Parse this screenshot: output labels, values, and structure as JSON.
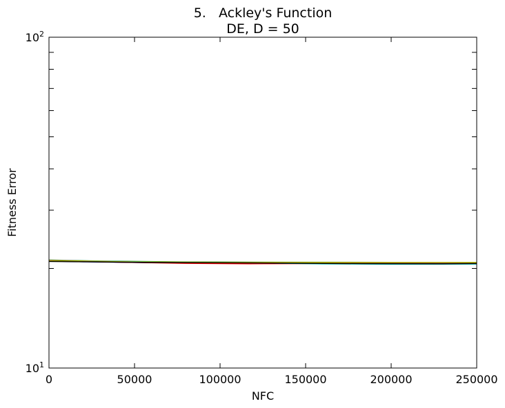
{
  "chart_data": {
    "type": "line",
    "title_line1": "5.   Ackley's Function",
    "title_line2": "DE, D = 50",
    "xlabel": "NFC",
    "ylabel": "Fitness Error",
    "xlim": [
      0,
      250000
    ],
    "ylim": [
      10,
      100
    ],
    "yscale": "log",
    "grid": false,
    "x_ticks": [
      {
        "value": 0,
        "label": "0"
      },
      {
        "value": 50000,
        "label": "50000"
      },
      {
        "value": 100000,
        "label": "100000"
      },
      {
        "value": 150000,
        "label": "150000"
      },
      {
        "value": 200000,
        "label": "200000"
      },
      {
        "value": 250000,
        "label": "250000"
      }
    ],
    "y_ticks": [
      {
        "value": 10,
        "base": "10",
        "exp": "1"
      },
      {
        "value": 100,
        "base": "10",
        "exp": "2"
      }
    ],
    "y_minor_ticks": [
      20,
      30,
      40,
      50,
      60,
      70,
      80,
      90
    ],
    "series": [
      {
        "color": "#0000ff",
        "x": [
          0,
          20000,
          60000,
          120000,
          180000,
          250000
        ],
        "y": [
          21.05,
          20.95,
          20.82,
          20.76,
          20.74,
          20.72
        ]
      },
      {
        "color": "#008000",
        "x": [
          0,
          30000,
          80000,
          120000,
          200000,
          250000
        ],
        "y": [
          21.2,
          21.05,
          20.92,
          20.88,
          20.86,
          20.85
        ]
      },
      {
        "color": "#ff0000",
        "x": [
          0,
          40000,
          80000,
          117000,
          170000,
          250000
        ],
        "y": [
          21.1,
          20.9,
          20.72,
          20.66,
          20.7,
          20.78
        ]
      },
      {
        "color": "#00bfbf",
        "x": [
          0,
          50000,
          117000,
          160000,
          200000,
          250000
        ],
        "y": [
          21.1,
          20.95,
          20.8,
          20.65,
          20.6,
          20.62
        ]
      },
      {
        "color": "#bf00bf",
        "x": [
          0,
          50000,
          100000,
          150000,
          200000,
          250000
        ],
        "y": [
          21.15,
          20.9,
          20.82,
          20.84,
          20.82,
          20.8
        ]
      },
      {
        "color": "#bfbf00",
        "x": [
          0,
          50000,
          100000,
          150000,
          200000,
          250000
        ],
        "y": [
          21.12,
          20.92,
          20.86,
          20.86,
          20.84,
          20.84
        ]
      },
      {
        "color": "#000000",
        "x": [
          0,
          60000,
          120000,
          183000,
          230000,
          250000
        ],
        "y": [
          21.0,
          20.85,
          20.78,
          20.68,
          20.66,
          20.7
        ]
      }
    ]
  }
}
